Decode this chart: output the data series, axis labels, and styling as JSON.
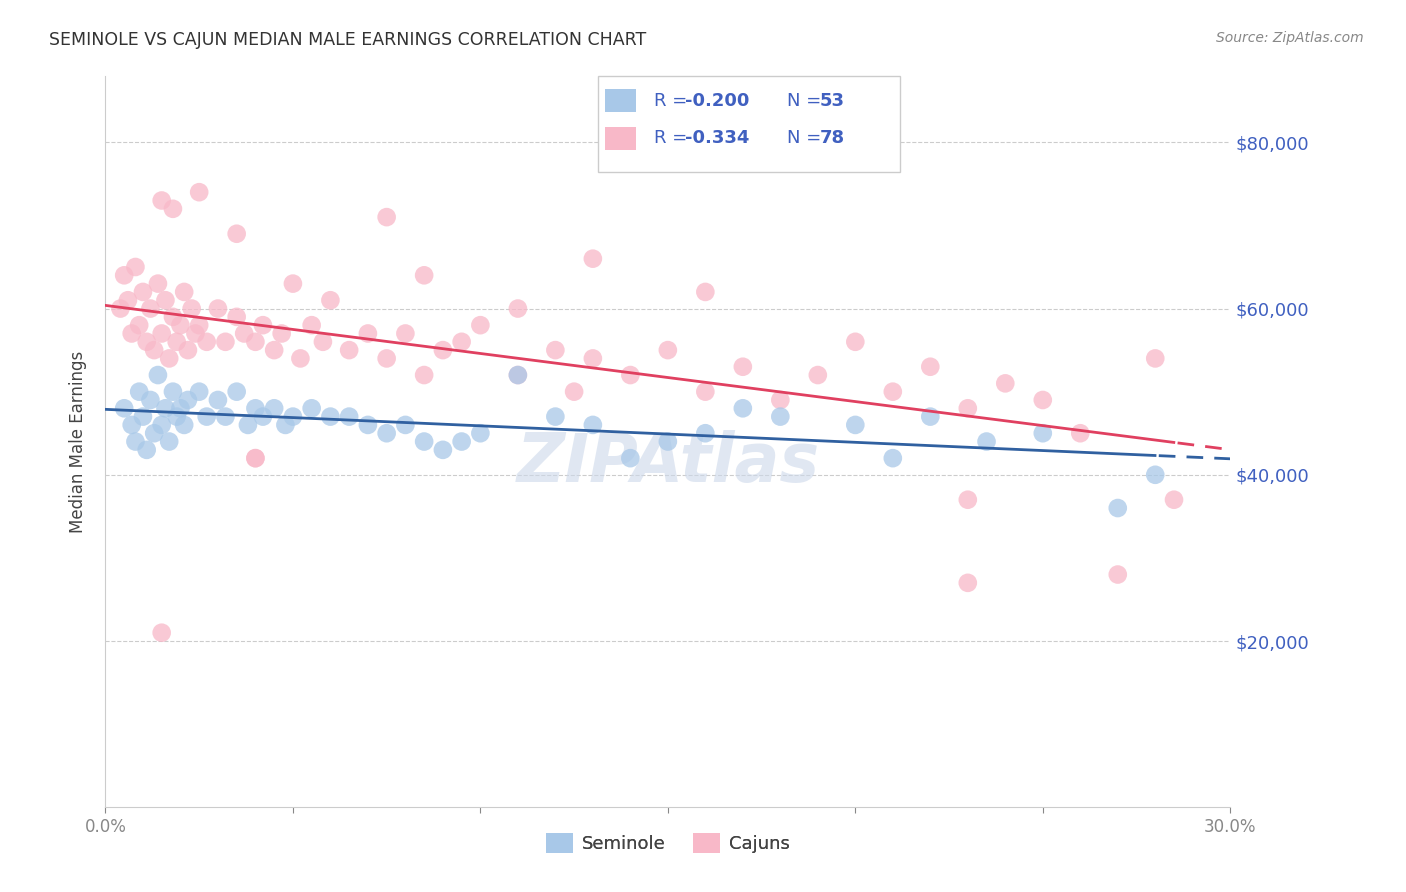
{
  "title": "SEMINOLE VS CAJUN MEDIAN MALE EARNINGS CORRELATION CHART",
  "source": "Source: ZipAtlas.com",
  "ylabel": "Median Male Earnings",
  "ytick_labels": [
    "$20,000",
    "$40,000",
    "$60,000",
    "$80,000"
  ],
  "ytick_values": [
    20000,
    40000,
    60000,
    80000
  ],
  "ymin": 0,
  "ymax": 88000,
  "xmin": 0.0,
  "xmax": 0.3,
  "seminole_color": "#a8c8e8",
  "cajun_color": "#f8b8c8",
  "seminole_line_color": "#3060a0",
  "cajun_line_color": "#e04060",
  "legend_text_color": "#4060c0",
  "seminole_R": -0.2,
  "seminole_N": 53,
  "cajun_R": -0.334,
  "cajun_N": 78,
  "legend_label_seminole": "Seminole",
  "legend_label_cajun": "Cajuns",
  "seminole_scatter_x": [
    0.005,
    0.007,
    0.008,
    0.009,
    0.01,
    0.011,
    0.012,
    0.013,
    0.014,
    0.015,
    0.016,
    0.017,
    0.018,
    0.019,
    0.02,
    0.021,
    0.022,
    0.025,
    0.027,
    0.03,
    0.032,
    0.035,
    0.038,
    0.04,
    0.042,
    0.045,
    0.048,
    0.05,
    0.055,
    0.06,
    0.065,
    0.07,
    0.075,
    0.08,
    0.085,
    0.09,
    0.095,
    0.1,
    0.11,
    0.12,
    0.13,
    0.14,
    0.15,
    0.16,
    0.17,
    0.18,
    0.2,
    0.21,
    0.22,
    0.235,
    0.25,
    0.27,
    0.28
  ],
  "seminole_scatter_y": [
    48000,
    46000,
    44000,
    50000,
    47000,
    43000,
    49000,
    45000,
    52000,
    46000,
    48000,
    44000,
    50000,
    47000,
    48000,
    46000,
    49000,
    50000,
    47000,
    49000,
    47000,
    50000,
    46000,
    48000,
    47000,
    48000,
    46000,
    47000,
    48000,
    47000,
    47000,
    46000,
    45000,
    46000,
    44000,
    43000,
    44000,
    45000,
    52000,
    47000,
    46000,
    42000,
    44000,
    45000,
    48000,
    47000,
    46000,
    42000,
    47000,
    44000,
    45000,
    36000,
    40000
  ],
  "cajun_scatter_x": [
    0.004,
    0.005,
    0.006,
    0.007,
    0.008,
    0.009,
    0.01,
    0.011,
    0.012,
    0.013,
    0.014,
    0.015,
    0.016,
    0.017,
    0.018,
    0.019,
    0.02,
    0.021,
    0.022,
    0.023,
    0.024,
    0.025,
    0.027,
    0.03,
    0.032,
    0.035,
    0.037,
    0.04,
    0.042,
    0.045,
    0.047,
    0.05,
    0.052,
    0.055,
    0.058,
    0.06,
    0.065,
    0.07,
    0.075,
    0.08,
    0.085,
    0.09,
    0.095,
    0.1,
    0.11,
    0.12,
    0.125,
    0.13,
    0.14,
    0.15,
    0.16,
    0.17,
    0.18,
    0.19,
    0.2,
    0.21,
    0.22,
    0.23,
    0.24,
    0.25,
    0.26,
    0.27,
    0.28,
    0.285,
    0.015,
    0.018,
    0.025,
    0.035,
    0.075,
    0.085,
    0.11,
    0.13,
    0.16,
    0.23,
    0.04,
    0.015,
    0.23,
    0.04
  ],
  "cajun_scatter_y": [
    60000,
    64000,
    61000,
    57000,
    65000,
    58000,
    62000,
    56000,
    60000,
    55000,
    63000,
    57000,
    61000,
    54000,
    59000,
    56000,
    58000,
    62000,
    55000,
    60000,
    57000,
    58000,
    56000,
    60000,
    56000,
    59000,
    57000,
    56000,
    58000,
    55000,
    57000,
    63000,
    54000,
    58000,
    56000,
    61000,
    55000,
    57000,
    54000,
    57000,
    52000,
    55000,
    56000,
    58000,
    52000,
    55000,
    50000,
    54000,
    52000,
    55000,
    50000,
    53000,
    49000,
    52000,
    56000,
    50000,
    53000,
    48000,
    51000,
    49000,
    45000,
    28000,
    54000,
    37000,
    73000,
    72000,
    74000,
    69000,
    71000,
    64000,
    60000,
    66000,
    62000,
    37000,
    42000,
    21000,
    27000,
    42000
  ]
}
